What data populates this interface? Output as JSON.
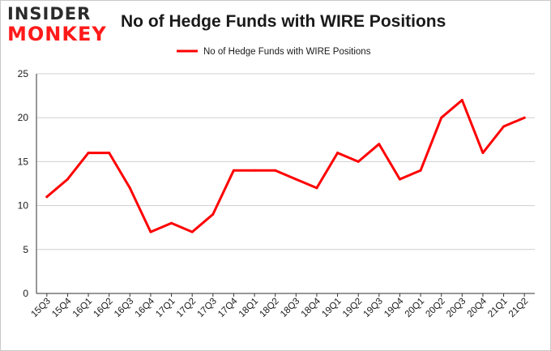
{
  "logo": {
    "line1": "INSIDER",
    "line2": "MONKEY"
  },
  "colors": {
    "series": "#ff0000",
    "grid": "#cfcfcf",
    "axis": "#333333",
    "text": "#1a1a1a",
    "brand_red": "#ff1a1a"
  },
  "chart_data": {
    "type": "line",
    "title": "No of Hedge Funds with WIRE Positions",
    "xlabel": "",
    "ylabel": "",
    "ylim": [
      0,
      25
    ],
    "yticks": [
      0,
      5,
      10,
      15,
      20,
      25
    ],
    "grid": true,
    "legend": "top-center",
    "categories": [
      "15Q3",
      "15Q4",
      "16Q1",
      "16Q2",
      "16Q3",
      "16Q4",
      "17Q1",
      "17Q2",
      "17Q3",
      "17Q4",
      "18Q1",
      "18Q2",
      "18Q3",
      "18Q4",
      "19Q1",
      "19Q2",
      "19Q3",
      "19Q4",
      "20Q1",
      "20Q2",
      "20Q3",
      "20Q4",
      "21Q1",
      "21Q2"
    ],
    "series": [
      {
        "name": "No of Hedge Funds with WIRE Positions",
        "values": [
          11,
          13,
          16,
          16,
          12,
          7,
          8,
          7,
          9,
          14,
          14,
          14,
          13,
          12,
          16,
          15,
          17,
          13,
          14,
          20,
          22,
          16,
          19,
          20
        ]
      }
    ]
  }
}
